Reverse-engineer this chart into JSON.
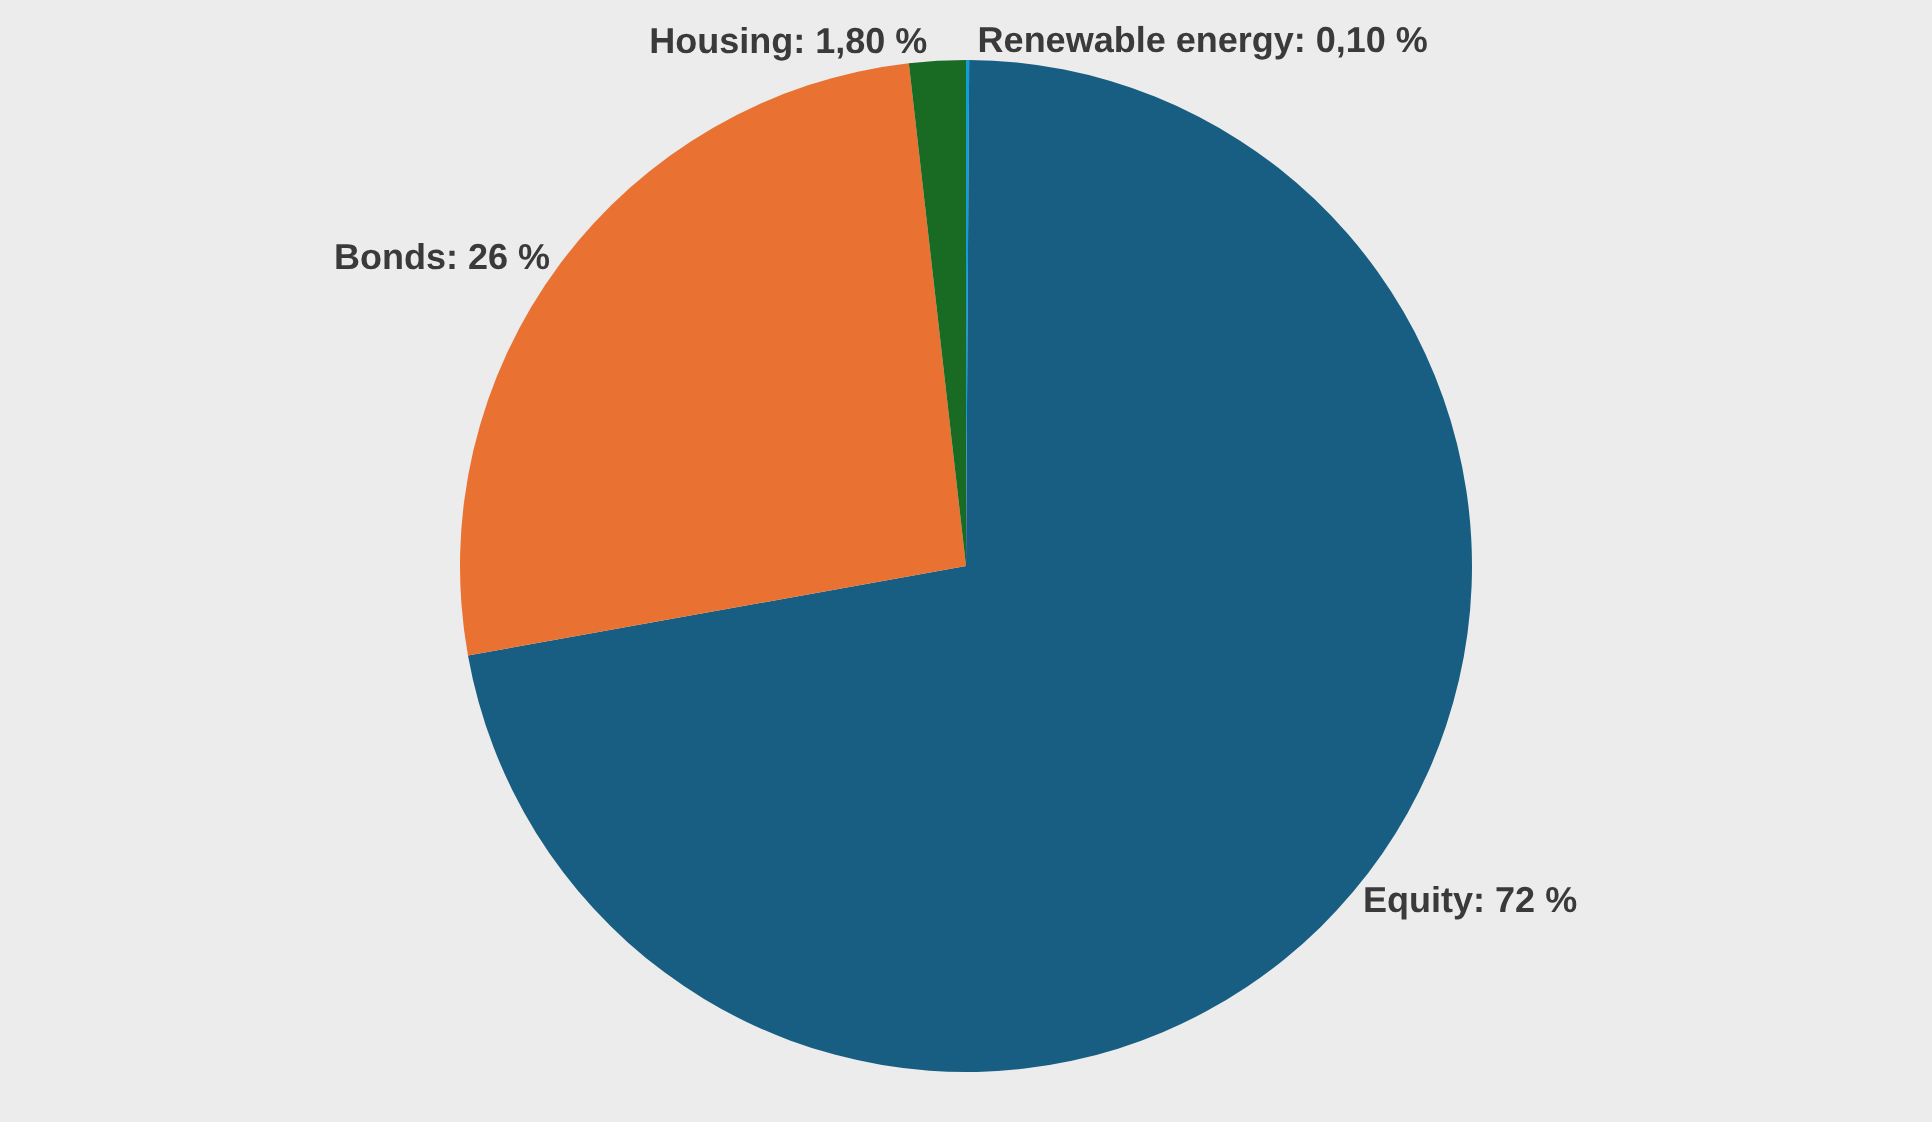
{
  "chart_data": {
    "type": "pie",
    "categories": [
      "Renewable energy",
      "Equity",
      "Bonds",
      "Housing"
    ],
    "values": [
      0.1,
      72,
      26,
      1.8
    ],
    "colors": [
      "#0f9ed5",
      "#175e82",
      "#e97132",
      "#196b24"
    ],
    "value_labels": [
      "0,10 %",
      "72 %",
      "26 %",
      "1,80 %"
    ],
    "legend": false
  }
}
